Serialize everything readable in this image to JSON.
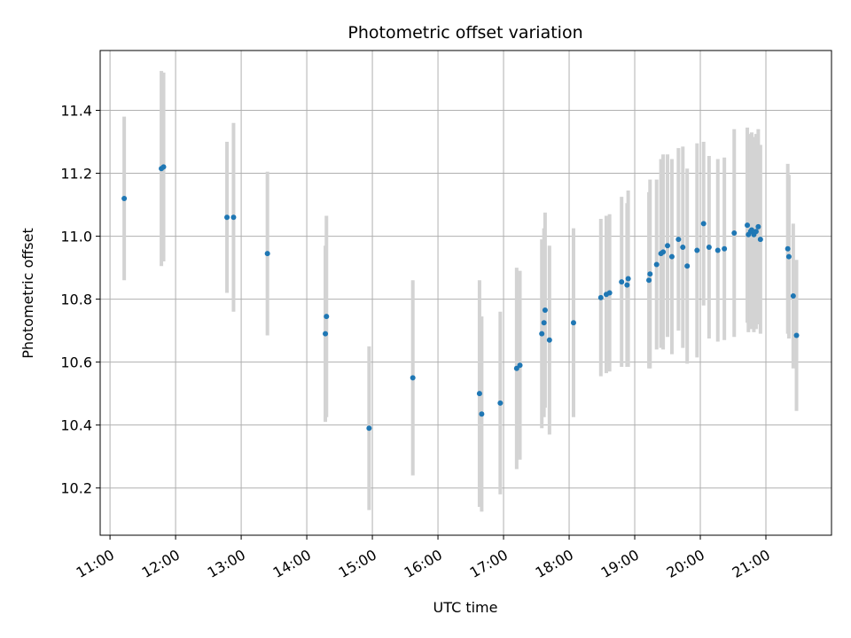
{
  "chart_data": {
    "type": "scatter",
    "title": "Photometric offset variation",
    "xlabel": "UTC time",
    "ylabel": "Photometric offset",
    "grid": true,
    "x_ticks": [
      "11:00",
      "12:00",
      "13:00",
      "14:00",
      "15:00",
      "16:00",
      "17:00",
      "18:00",
      "19:00",
      "20:00",
      "21:00"
    ],
    "y_ticks": [
      10.2,
      10.4,
      10.6,
      10.8,
      11.0,
      11.2,
      11.4
    ],
    "xlim": [
      "10:51",
      "22:00"
    ],
    "ylim": [
      10.05,
      11.59
    ],
    "colors": {
      "points": "#1f77b4",
      "error_bars": "#d3d3d3",
      "grid": "#b0b0b0"
    },
    "series": [
      {
        "x": [
          "11:13",
          "11:47",
          "11:49",
          "12:47",
          "12:53",
          "13:24",
          "14:17",
          "14:18",
          "14:57",
          "15:37",
          "16:38",
          "16:40",
          "16:57",
          "17:12",
          "17:15",
          "17:35",
          "17:37",
          "17:38",
          "17:42",
          "18:04",
          "18:29",
          "18:34",
          "18:37",
          "18:48",
          "18:53",
          "18:54",
          "19:13",
          "19:14",
          "19:20",
          "19:24",
          "19:26",
          "19:30",
          "19:34",
          "19:40",
          "19:44",
          "19:48",
          "19:57",
          "20:03",
          "20:08",
          "20:16",
          "20:22",
          "20:31",
          "20:43",
          "20:44",
          "20:46",
          "20:47",
          "20:49",
          "20:51",
          "20:53",
          "20:55",
          "21:20",
          "21:21",
          "21:25",
          "21:28"
        ],
        "y": [
          11.12,
          11.215,
          11.22,
          11.06,
          11.06,
          10.945,
          10.69,
          10.745,
          10.39,
          10.55,
          10.5,
          10.435,
          10.47,
          10.58,
          10.59,
          10.69,
          10.725,
          10.765,
          10.67,
          10.725,
          10.805,
          10.815,
          10.82,
          10.855,
          10.845,
          10.865,
          10.86,
          10.88,
          10.91,
          10.945,
          10.95,
          10.97,
          10.935,
          10.99,
          10.965,
          10.905,
          10.955,
          11.04,
          10.965,
          10.955,
          10.96,
          11.01,
          11.035,
          11.005,
          11.015,
          11.02,
          11.005,
          11.015,
          11.03,
          10.99,
          10.96,
          10.935,
          10.81,
          10.685
        ],
        "yerr": [
          0.26,
          0.31,
          0.3,
          0.24,
          0.3,
          0.26,
          0.28,
          0.32,
          0.26,
          0.31,
          0.36,
          0.31,
          0.29,
          0.32,
          0.3,
          0.3,
          0.3,
          0.31,
          0.3,
          0.3,
          0.25,
          0.25,
          0.25,
          0.27,
          0.26,
          0.28,
          0.28,
          0.3,
          0.27,
          0.3,
          0.31,
          0.29,
          0.31,
          0.29,
          0.32,
          0.31,
          0.34,
          0.26,
          0.29,
          0.29,
          0.29,
          0.33,
          0.31,
          0.31,
          0.31,
          0.31,
          0.31,
          0.31,
          0.31,
          0.3,
          0.27,
          0.26,
          0.23,
          0.24
        ]
      }
    ]
  }
}
